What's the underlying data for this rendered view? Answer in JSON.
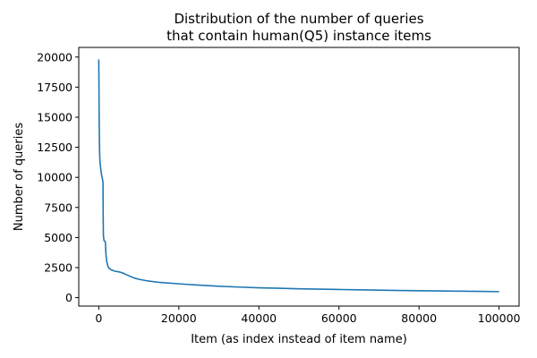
{
  "chart_data": {
    "type": "line",
    "title_lines": [
      "Distribution of the number of queries",
      "that contain human(Q5) instance items"
    ],
    "xlabel": "Item (as index instead of item name)",
    "ylabel": "Number of queries",
    "xlim": [
      -5000,
      105000
    ],
    "ylim": [
      -700,
      20800
    ],
    "x_ticks": [
      {
        "value": 0,
        "label": "0"
      },
      {
        "value": 20000,
        "label": "20000"
      },
      {
        "value": 40000,
        "label": "40000"
      },
      {
        "value": 60000,
        "label": "60000"
      },
      {
        "value": 80000,
        "label": "80000"
      },
      {
        "value": 100000,
        "label": "100000"
      }
    ],
    "y_ticks": [
      {
        "value": 0,
        "label": "0"
      },
      {
        "value": 2500,
        "label": "2500"
      },
      {
        "value": 5000,
        "label": "5000"
      },
      {
        "value": 7500,
        "label": "7500"
      },
      {
        "value": 10000,
        "label": "10000"
      },
      {
        "value": 12500,
        "label": "12500"
      },
      {
        "value": 15000,
        "label": "15000"
      },
      {
        "value": 17500,
        "label": "17500"
      },
      {
        "value": 20000,
        "label": "20000"
      }
    ],
    "grid": false,
    "legend": false,
    "line_color": "#1f77b4",
    "series": [
      {
        "x": [
          0,
          50,
          100,
          200,
          300,
          500,
          700,
          900,
          1050,
          1100,
          1150,
          1300,
          1500,
          1650,
          1800,
          2000,
          2300,
          2700,
          3200,
          4000,
          5000,
          6000,
          7000,
          8000,
          9000,
          10000,
          12000,
          15000,
          20000,
          25000,
          30000,
          35000,
          40000,
          45000,
          50000,
          55000,
          60000,
          65000,
          70000,
          75000,
          80000,
          85000,
          90000,
          95000,
          100000
        ],
        "y": [
          19800,
          17500,
          14500,
          12200,
          11300,
          10700,
          10200,
          9900,
          9600,
          7000,
          5200,
          4750,
          4700,
          4600,
          3600,
          3000,
          2600,
          2400,
          2300,
          2200,
          2150,
          2050,
          1900,
          1750,
          1620,
          1530,
          1400,
          1280,
          1150,
          1040,
          950,
          880,
          820,
          780,
          740,
          710,
          680,
          650,
          625,
          600,
          580,
          560,
          540,
          520,
          500
        ]
      }
    ]
  }
}
